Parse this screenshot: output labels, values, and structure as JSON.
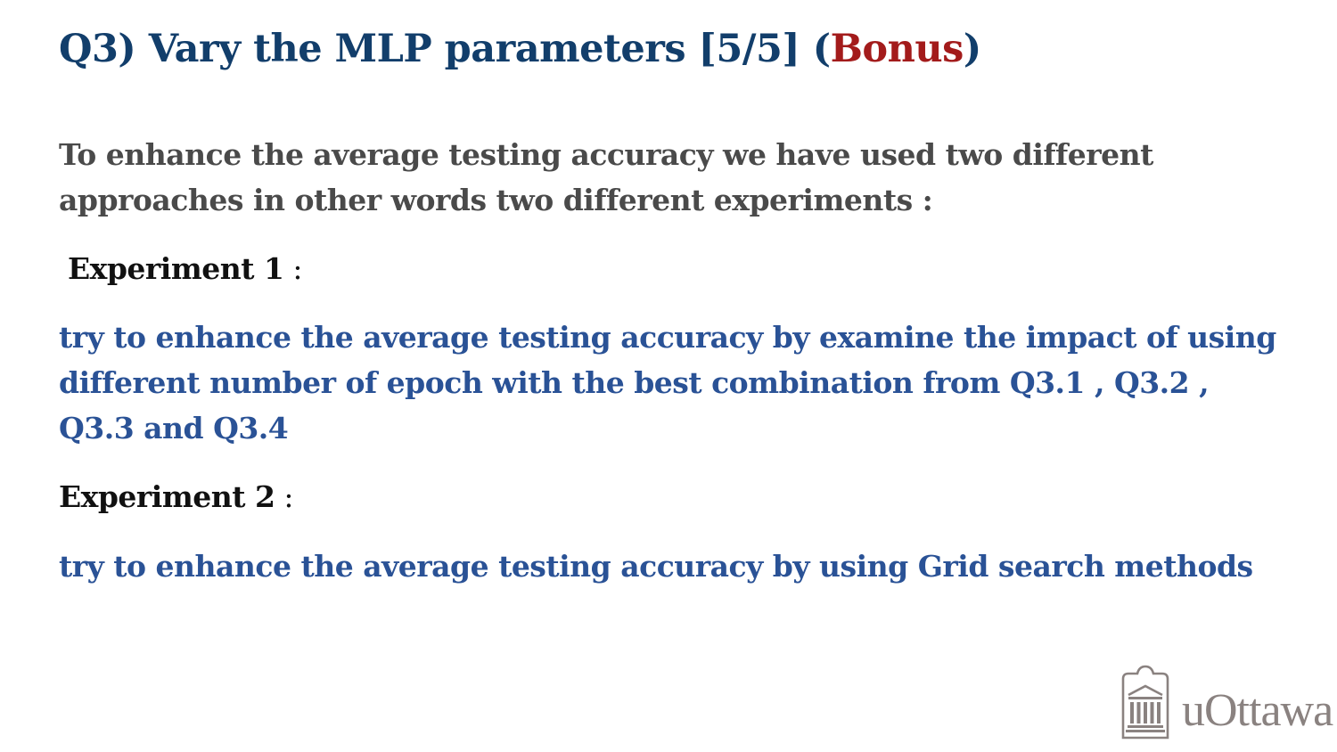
{
  "title": {
    "main": "Q3) Vary the MLP parameters [5/5]  (",
    "bonus": "Bonus",
    "close": ")"
  },
  "intro": "To enhance the average testing accuracy we have used two different approaches in other words two different experiments :",
  "experiments": [
    {
      "heading": "Experiment 1",
      "colon": " :",
      "description": "try to enhance the average testing accuracy by examine the impact of using different number of epoch with the best combination from Q3.1 , Q3.2 , Q3.3 and Q3.4"
    },
    {
      "heading": "Experiment 2",
      "colon": " :",
      "description": "try to enhance the average testing accuracy by using Grid search methods"
    }
  ],
  "logo": {
    "text": "uOttawa",
    "icon": "university-building-icon",
    "color": "#8a8280"
  },
  "colors": {
    "title": "#123e6b",
    "bonus": "#a31b1b",
    "intro": "#4a4a4a",
    "description": "#2a5296"
  }
}
